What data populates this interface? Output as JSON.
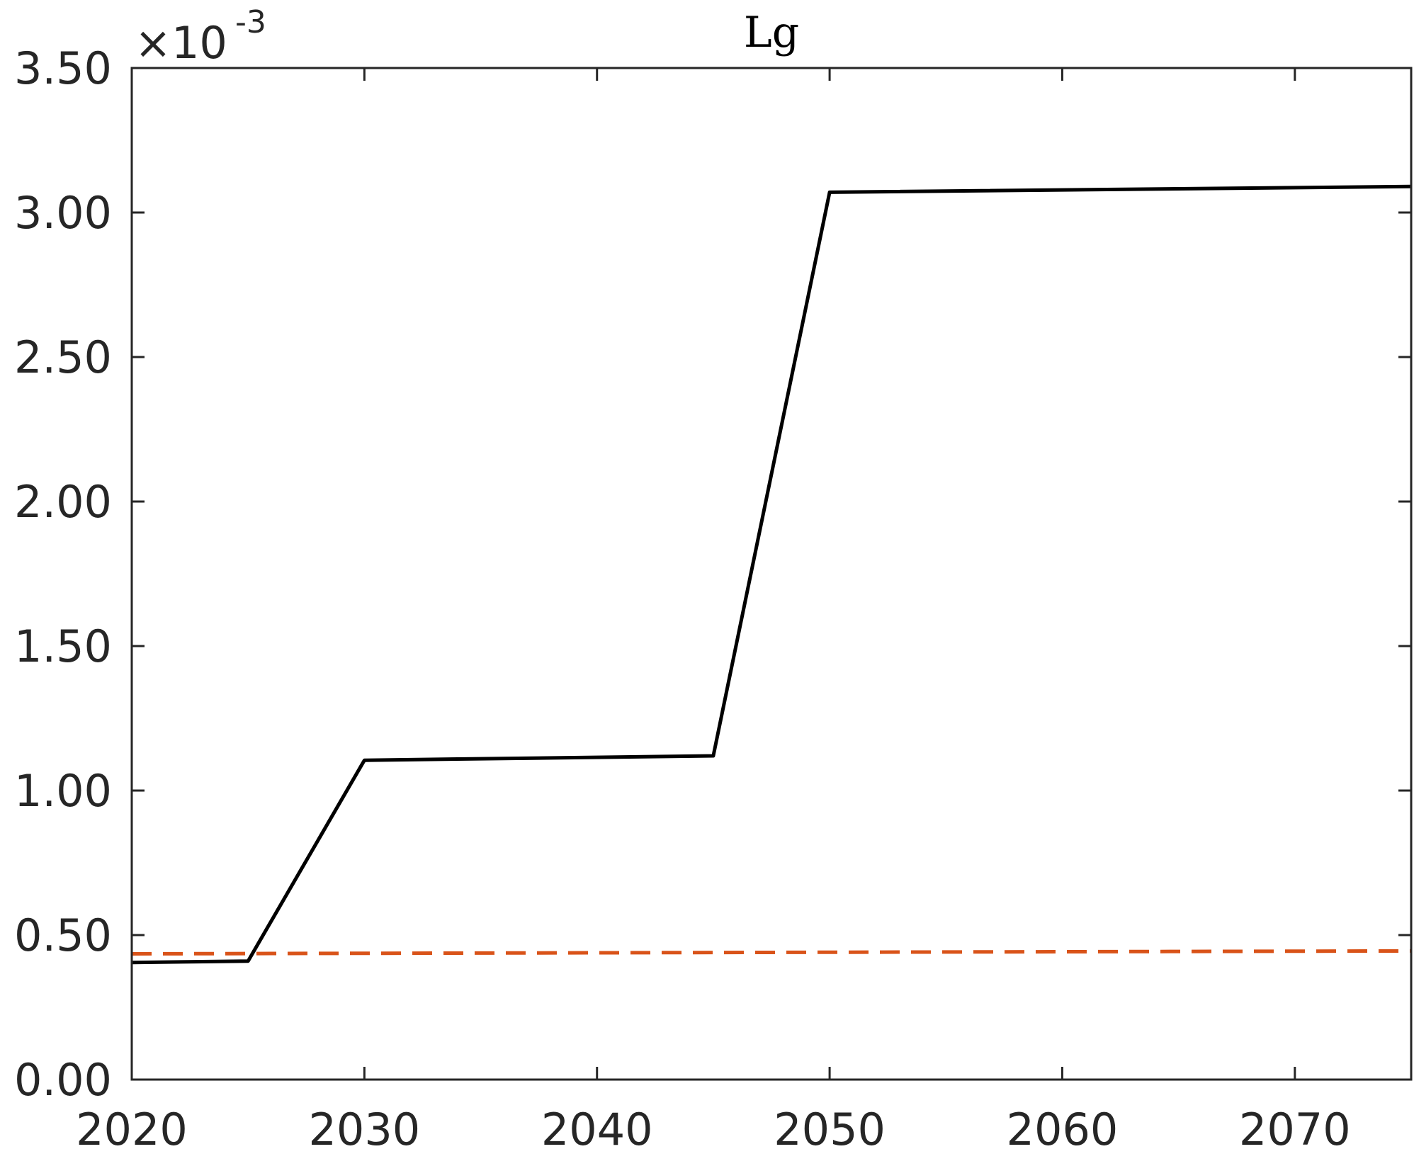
{
  "chart_data": {
    "type": "line",
    "title": "Lg",
    "xlabel": "",
    "ylabel": "",
    "y_exponent_label": "×10",
    "y_exponent_power": "-3",
    "xlim": [
      2020,
      2075
    ],
    "ylim": [
      0,
      3.5
    ],
    "x_ticks": [
      2020,
      2030,
      2040,
      2050,
      2060,
      2070
    ],
    "x_tick_labels": [
      "2020",
      "2030",
      "2040",
      "2050",
      "2060",
      "2070"
    ],
    "y_ticks": [
      0,
      0.5,
      1.0,
      1.5,
      2.0,
      2.5,
      3.0,
      3.5
    ],
    "y_tick_labels": [
      "0.00",
      "0.50",
      "1.00",
      "1.50",
      "2.00",
      "2.50",
      "3.00",
      "3.50"
    ],
    "grid": false,
    "series": [
      {
        "color": "#000000",
        "line_style": "solid",
        "x": [
          2020,
          2025,
          2030,
          2045,
          2050,
          2075
        ],
        "y": [
          0.405,
          0.41,
          1.105,
          1.12,
          3.07,
          3.09
        ]
      },
      {
        "color": "#D95319",
        "line_style": "dashed",
        "x": [
          2020,
          2075
        ],
        "y": [
          0.435,
          0.445
        ]
      }
    ]
  }
}
